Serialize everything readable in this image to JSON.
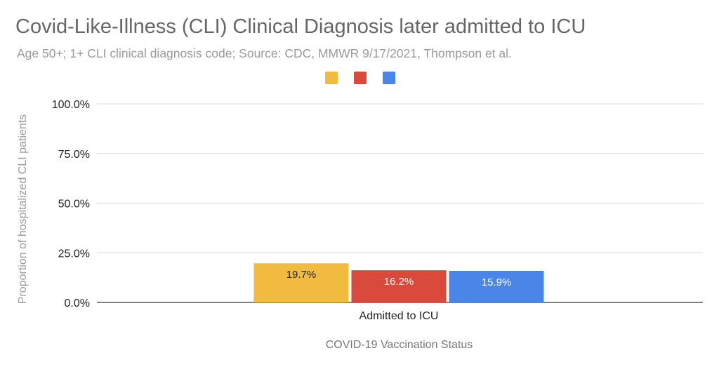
{
  "chart_data": {
    "type": "bar",
    "title": "Covid-Like-Illness (CLI) Clinical Diagnosis later admitted to ICU",
    "subtitle": "Age 50+; 1+ CLI clinical diagnosis code; Source: CDC, MMWR 9/17/2021, Thompson et al.",
    "xlabel": "COVID-19 Vaccination Status",
    "ylabel": "Proportion of hospitalized CLI patients",
    "categories": [
      "Admitted to ICU"
    ],
    "series": [
      {
        "values": [
          19.7
        ],
        "label": "19.7%",
        "color": "#f0bb3f",
        "label_color": "#222222"
      },
      {
        "values": [
          16.2
        ],
        "label": "16.2%",
        "color": "#d9493c",
        "label_color": "#ffffff"
      },
      {
        "values": [
          15.9
        ],
        "label": "15.9%",
        "color": "#4a86e8",
        "label_color": "#ffffff"
      }
    ],
    "yticks": [
      "0.0%",
      "25.0%",
      "50.0%",
      "75.0%",
      "100.0%"
    ],
    "ylim": [
      0,
      100
    ],
    "grid": true,
    "legend": "top-center"
  }
}
